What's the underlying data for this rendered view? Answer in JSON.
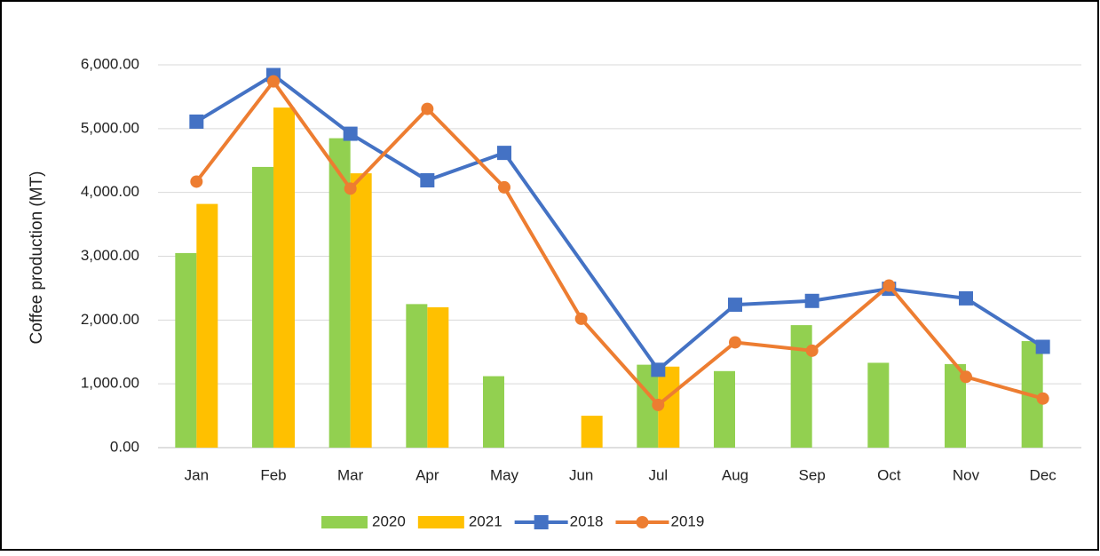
{
  "chart_data": {
    "type": "combo",
    "y_axis_label": "Coffee production (MT)",
    "categories": [
      "Jan",
      "Feb",
      "Mar",
      "Apr",
      "May",
      "Jun",
      "Jul",
      "Aug",
      "Sep",
      "Oct",
      "Nov",
      "Dec"
    ],
    "series": [
      {
        "name": "2020",
        "type": "bar",
        "color": "#92d050",
        "values": [
          3050,
          4400,
          4850,
          2250,
          1120,
          null,
          1300,
          1200,
          1920,
          1330,
          1310,
          1670
        ]
      },
      {
        "name": "2021",
        "type": "bar",
        "color": "#ffc000",
        "values": [
          3820,
          5330,
          4300,
          2200,
          null,
          500,
          1270,
          null,
          null,
          null,
          null,
          null
        ]
      },
      {
        "name": "2018",
        "type": "line",
        "marker": "square",
        "color": "#4472c4",
        "values": [
          5110,
          5840,
          4920,
          4190,
          4620,
          null,
          1220,
          2240,
          2300,
          2490,
          2340,
          1580
        ]
      },
      {
        "name": "2019",
        "type": "line",
        "marker": "circle",
        "color": "#ed7d31",
        "values": [
          4170,
          5740,
          4060,
          5310,
          4080,
          2020,
          670,
          1650,
          1520,
          2540,
          1110,
          770
        ]
      }
    ],
    "connect_gaps": true,
    "ylim": [
      0,
      6000
    ],
    "yticks": [
      {
        "value": 0,
        "label": "0.00"
      },
      {
        "value": 1000,
        "label": "1,000.00"
      },
      {
        "value": 2000,
        "label": "2,000.00"
      },
      {
        "value": 3000,
        "label": "3,000.00"
      },
      {
        "value": 4000,
        "label": "4,000.00"
      },
      {
        "value": 5000,
        "label": "5,000.00"
      },
      {
        "value": 6000,
        "label": "6,000.00"
      }
    ],
    "grid": true,
    "legend": "bottom"
  }
}
